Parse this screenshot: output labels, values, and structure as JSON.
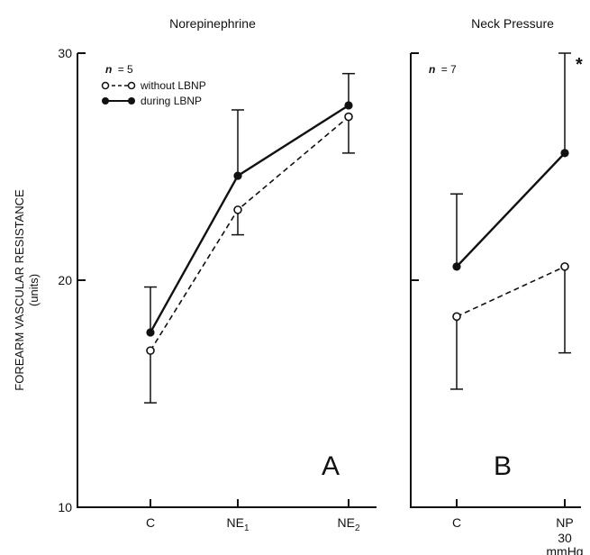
{
  "chart_data": [
    {
      "type": "line",
      "title": "Norepinephrine",
      "panel_label": "A",
      "n_label_prefix": "n",
      "n_label_value": "= 5",
      "ylabel": "FOREARM VASCULAR RESISTANCE",
      "ylabel_units": "(units)",
      "ylim": [
        10,
        30
      ],
      "yticks": [
        "10",
        "20",
        "30"
      ],
      "categories": [
        "C",
        "NE",
        "NE"
      ],
      "category_subscripts": [
        "",
        "1",
        "2"
      ],
      "series": [
        {
          "name": "without LBNP",
          "marker": "open-circle",
          "line": "dashed",
          "values": [
            16.9,
            23.1,
            27.2
          ],
          "error": [
            [
              "down",
              14.6
            ],
            [
              "down",
              22.0
            ],
            [
              "down",
              25.6
            ]
          ]
        },
        {
          "name": "during LBNP",
          "marker": "filled-circle",
          "line": "solid",
          "values": [
            17.7,
            24.6,
            27.7
          ],
          "error": [
            [
              "up",
              19.7
            ],
            [
              "up",
              27.5
            ],
            [
              "up",
              29.1
            ]
          ]
        }
      ]
    },
    {
      "type": "line",
      "title": "Neck Pressure",
      "panel_label": "B",
      "n_label_prefix": "n",
      "n_label_value": "= 7",
      "ylim": [
        10,
        30
      ],
      "categories": [
        "C",
        "NP"
      ],
      "category_extra": [
        "",
        "30 mmHg"
      ],
      "significance_marker": "*",
      "series": [
        {
          "name": "without LBNP",
          "marker": "open-circle",
          "line": "dashed",
          "values": [
            18.4,
            20.6
          ],
          "error": [
            [
              "down",
              15.2
            ],
            [
              "down",
              16.8
            ]
          ]
        },
        {
          "name": "during LBNP",
          "marker": "filled-circle",
          "line": "solid",
          "values": [
            20.6,
            25.6
          ],
          "error": [
            [
              "up",
              23.8
            ],
            [
              "up",
              30.0
            ]
          ]
        }
      ]
    }
  ]
}
